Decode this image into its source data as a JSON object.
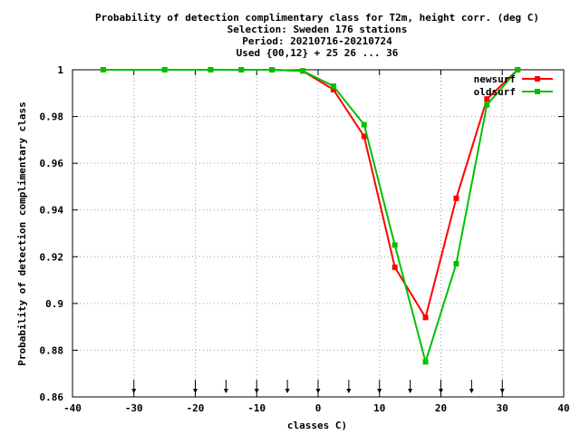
{
  "chart_data": {
    "type": "line",
    "title_lines": [
      "Probability of detection complimentary class  for T2m, height corr. (deg C)",
      "Selection: Sweden    176 stations",
      "Period: 20210716-20210724",
      "Used {00,12} + 25 26 ... 36"
    ],
    "xlabel": "classes C)",
    "ylabel": "Probability of detection complimentary class",
    "xlim": [
      -40,
      40
    ],
    "ylim": [
      0.86,
      1.0
    ],
    "xticks": [
      -40,
      -30,
      -20,
      -10,
      0,
      10,
      20,
      30,
      40
    ],
    "xtick_labels": [
      "-40",
      "-30",
      "-20",
      "-10",
      "0",
      "10",
      "20",
      "30",
      "40"
    ],
    "yticks": [
      0.86,
      0.88,
      0.9,
      0.92,
      0.94,
      0.96,
      0.98,
      1.0
    ],
    "ytick_labels": [
      "0.86",
      "0.88",
      "0.9",
      "0.92",
      "0.94",
      "0.96",
      "0.98",
      "1"
    ],
    "grid": true,
    "legend_position": "top-right",
    "class_markers": [
      -30,
      -20,
      -15,
      -10,
      -5,
      0,
      5,
      10,
      15,
      20,
      25,
      30
    ],
    "series": [
      {
        "name": "newsurf",
        "color": "#ff0000",
        "x": [
          -35,
          -25,
          -17.5,
          -12.5,
          -7.5,
          -2.5,
          2.5,
          7.5,
          12.5,
          17.5,
          22.5,
          27.5,
          32.5
        ],
        "y": [
          1.0,
          1.0,
          1.0,
          1.0,
          1.0,
          0.9995,
          0.9915,
          0.9715,
          0.9155,
          0.894,
          0.945,
          0.9875,
          1.0
        ]
      },
      {
        "name": "oldsurf",
        "color": "#00c000",
        "x": [
          -35,
          -25,
          -17.5,
          -12.5,
          -7.5,
          -2.5,
          2.5,
          7.5,
          12.5,
          17.5,
          22.5,
          27.5,
          32.5
        ],
        "y": [
          1.0,
          1.0,
          1.0,
          1.0,
          1.0,
          0.9995,
          0.993,
          0.9765,
          0.925,
          0.875,
          0.917,
          0.985,
          1.0
        ]
      }
    ]
  }
}
